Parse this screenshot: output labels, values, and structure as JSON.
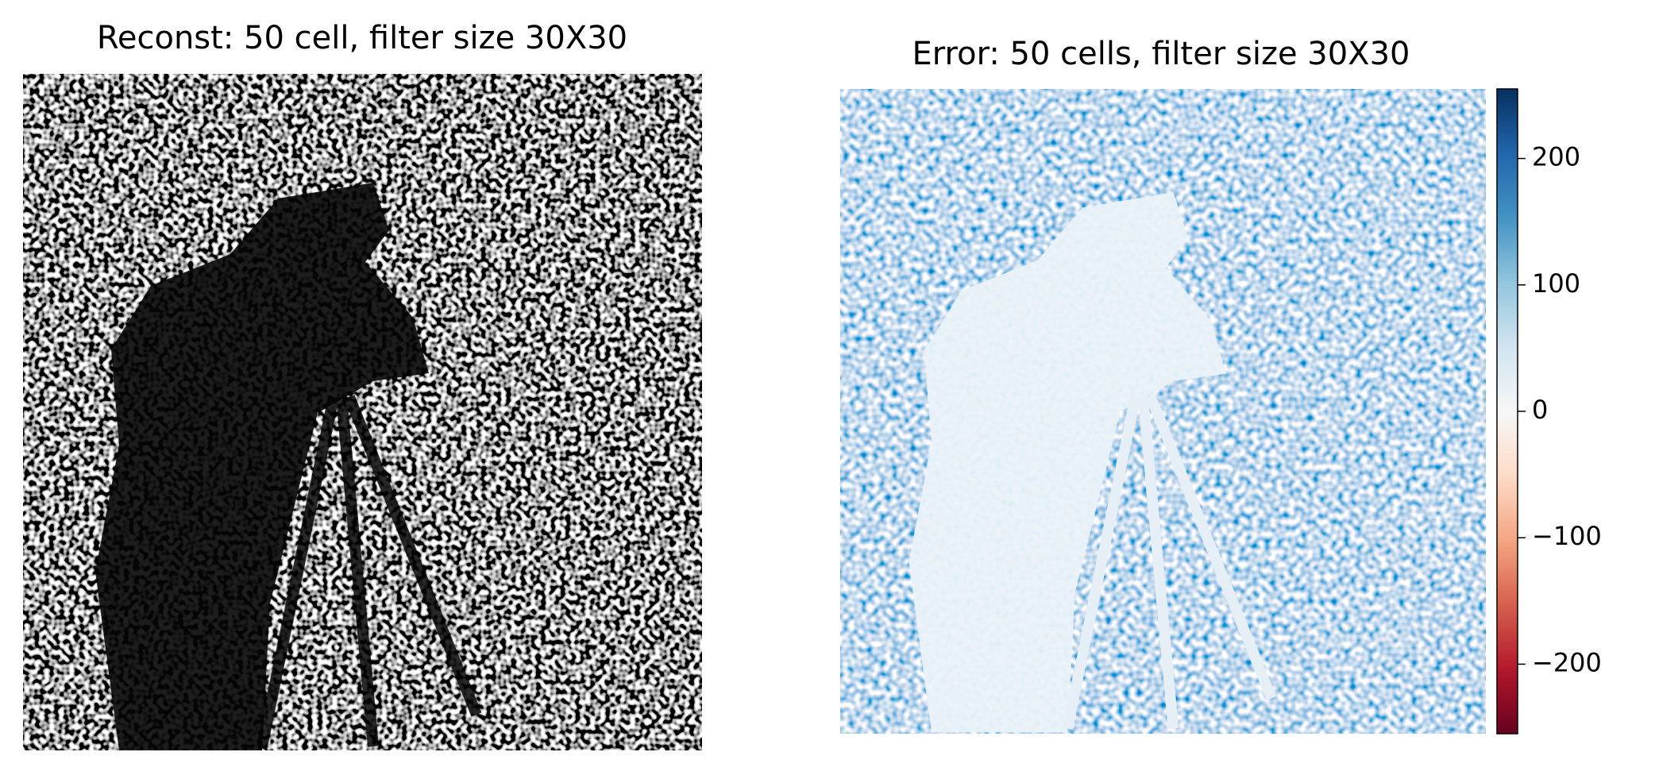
{
  "chart_data": [
    {
      "type": "image",
      "title": "Reconst: 50 cell, filter size 30X30"
    },
    {
      "type": "image",
      "title": "Error: 50 cells, filter size 30X30",
      "ylim": [
        -255,
        255
      ],
      "yticks": [
        {
          "value": -200,
          "label": "−200"
        },
        {
          "value": -100,
          "label": "−100"
        },
        0,
        100,
        200
      ]
    }
  ]
}
